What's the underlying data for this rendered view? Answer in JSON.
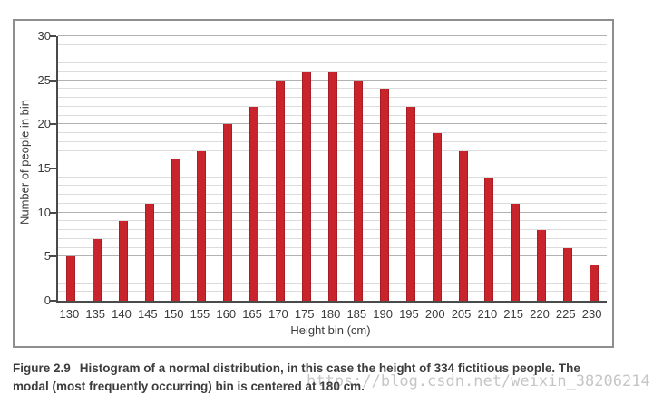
{
  "chart_data": {
    "type": "bar",
    "title": "",
    "categories": [
      "130",
      "135",
      "140",
      "145",
      "150",
      "155",
      "160",
      "165",
      "170",
      "175",
      "180",
      "185",
      "190",
      "195",
      "200",
      "205",
      "210",
      "215",
      "220",
      "225",
      "230"
    ],
    "values": [
      5,
      7,
      9,
      11,
      16,
      17,
      20,
      22,
      25,
      26,
      26,
      25,
      24,
      22,
      19,
      17,
      14,
      11,
      8,
      6,
      4
    ],
    "xlabel": "Height bin (cm)",
    "ylabel": "Number of people in bin",
    "ylim": [
      0,
      30
    ],
    "y_major_ticks": [
      0,
      5,
      10,
      15,
      20,
      25,
      30
    ],
    "y_minor_step": 1,
    "grid": "horizontal",
    "legend": "none"
  },
  "caption": {
    "figure_label": "Figure 2.9",
    "line1": "Histogram of a normal distribution, in this case the height of 334 fictitious people. The",
    "line2": "modal (most frequently occurring) bin is centered at 180 cm."
  },
  "watermark": {
    "text": "https://blog.csdn.net/weixin_38206214"
  },
  "colors": {
    "bar": "#c9242c",
    "bar_edge": "#a81d24",
    "grid_minor": "#dcdcdc",
    "grid_major": "#b2b2b2",
    "axis": "#4a4a4a",
    "frame_border": "#8e8e8e",
    "tick_label": "#3a3a3a",
    "caption_text": "#3d3d3d",
    "watermark": "#c6c6c6"
  }
}
